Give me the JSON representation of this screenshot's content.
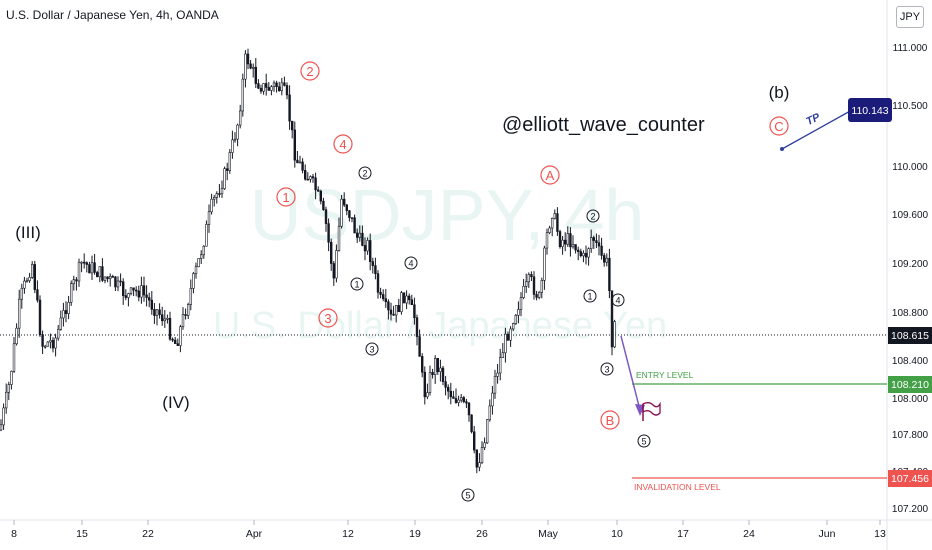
{
  "header": {
    "title": "U.S. Dollar / Japanese Yen, 4h, OANDA",
    "currency_badge": "JPY"
  },
  "watermark": {
    "symbol": "USDJPY, 4h",
    "name": "U.S. Dollar / Japanese Yen"
  },
  "author_tag": "@elliott_wave_counter",
  "chart_data": {
    "type": "candlestick",
    "y_ticks": [
      "111.000",
      "110.500",
      "110.000",
      "109.600",
      "109.200",
      "108.800",
      "108.400",
      "108.000",
      "107.800",
      "107.400",
      "107.200"
    ],
    "x_ticks": [
      "8",
      "15",
      "22",
      "Apr",
      "12",
      "19",
      "26",
      "May",
      "10",
      "17",
      "24",
      "Jun",
      "13"
    ],
    "ylim": [
      107.2,
      111.1
    ],
    "current_price": "108.615",
    "price_tags": [
      {
        "label": "110.143",
        "kind": "tp",
        "color": "#1b1b7a"
      },
      {
        "label": "108.210",
        "kind": "entry",
        "color": "#43a047"
      },
      {
        "label": "107.456",
        "kind": "invalidation",
        "color": "#ef5350"
      }
    ],
    "levels": [
      {
        "name": "ENTRY LEVEL",
        "value": 108.21,
        "color": "#43a047"
      },
      {
        "name": "INVALIDATION LEVEL",
        "value": 107.456,
        "color": "#ef5350"
      }
    ],
    "tp_label": "TP",
    "wave_labels": [
      {
        "text": "(III)",
        "style": "plain"
      },
      {
        "text": "(IV)",
        "style": "plain"
      },
      {
        "text": "(b)",
        "style": "plain"
      },
      {
        "text": "1",
        "style": "red-circle"
      },
      {
        "text": "2",
        "style": "red-circle"
      },
      {
        "text": "3",
        "style": "red-circle"
      },
      {
        "text": "4",
        "style": "red-circle"
      },
      {
        "text": "A",
        "style": "red-circle"
      },
      {
        "text": "B",
        "style": "red-circle"
      },
      {
        "text": "C",
        "style": "red-circle"
      },
      {
        "text": "1",
        "style": "black-circle"
      },
      {
        "text": "2",
        "style": "black-circle"
      },
      {
        "text": "3",
        "style": "black-circle"
      },
      {
        "text": "4",
        "style": "black-circle"
      },
      {
        "text": "5",
        "style": "black-circle"
      },
      {
        "text": "1",
        "style": "black-circle"
      },
      {
        "text": "2",
        "style": "black-circle"
      },
      {
        "text": "3",
        "style": "black-circle"
      },
      {
        "text": "4",
        "style": "black-circle"
      },
      {
        "text": "5",
        "style": "black-circle"
      }
    ],
    "colors": {
      "candle": "#131722",
      "red_label": "#ef5350",
      "watermark": "#e3f4f1",
      "projection": "#7e57c2"
    }
  }
}
